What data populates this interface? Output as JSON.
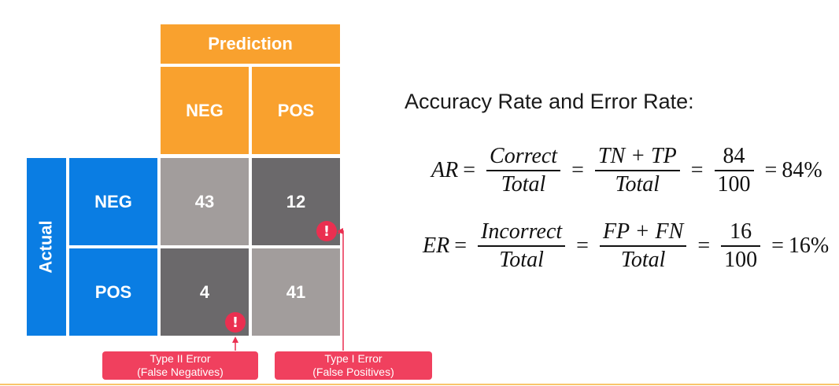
{
  "matrix": {
    "prediction_label": "Prediction",
    "actual_label": "Actual",
    "col_labels": [
      "NEG",
      "POS"
    ],
    "row_labels": [
      "NEG",
      "POS"
    ],
    "cells": {
      "tn": "43",
      "fp": "12",
      "fn": "4",
      "tp": "41"
    },
    "alert_glyph": "!"
  },
  "errors": {
    "type2_line1": "Type II Error",
    "type2_line2": "(False Negatives)",
    "type1_line1": "Type I Error",
    "type1_line2": "(False Positives)"
  },
  "formulas": {
    "title": "Accuracy Rate and Error Rate:",
    "ar": {
      "lhs": "AR",
      "eq": "=",
      "f1_num": "Correct",
      "f1_den": "Total",
      "f2_num": "TN + TP",
      "f2_den": "Total",
      "f3_num": "84",
      "f3_den": "100",
      "result": "84%"
    },
    "er": {
      "lhs": "ER",
      "eq": "=",
      "f1_num": "Incorrect",
      "f1_den": "Total",
      "f2_num": "FP + FN",
      "f2_den": "Total",
      "f3_num": "16",
      "f3_den": "100",
      "result": "16%"
    }
  },
  "colors": {
    "orange": "#f9a12e",
    "blue": "#0a7de3",
    "cell_light": "#a29d9c",
    "cell_dark": "#6b696b",
    "error_red": "#f0405e"
  }
}
